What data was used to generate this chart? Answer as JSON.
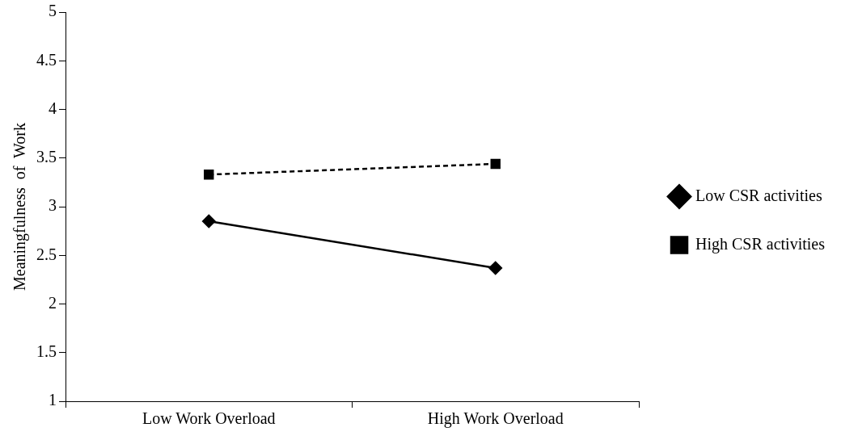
{
  "chart_data": {
    "type": "line",
    "ylabel": "Meaningfulness  of  Work",
    "categories": [
      "Low Work Overload",
      "High Work Overload"
    ],
    "series": [
      {
        "name": "Low CSR activities",
        "color": "#000000",
        "values": [
          2.85,
          2.37
        ],
        "marker": "diamond",
        "line_style": "solid"
      },
      {
        "name": "High CSR activities",
        "color": "#000000",
        "values": [
          3.33,
          3.44
        ],
        "marker": "square",
        "line_style": "dashed"
      }
    ],
    "ylim": [
      1,
      5
    ],
    "yticks": [
      1,
      1.5,
      2,
      2.5,
      3,
      3.5,
      4,
      4.5,
      5
    ],
    "grid": false,
    "legend": "right"
  }
}
